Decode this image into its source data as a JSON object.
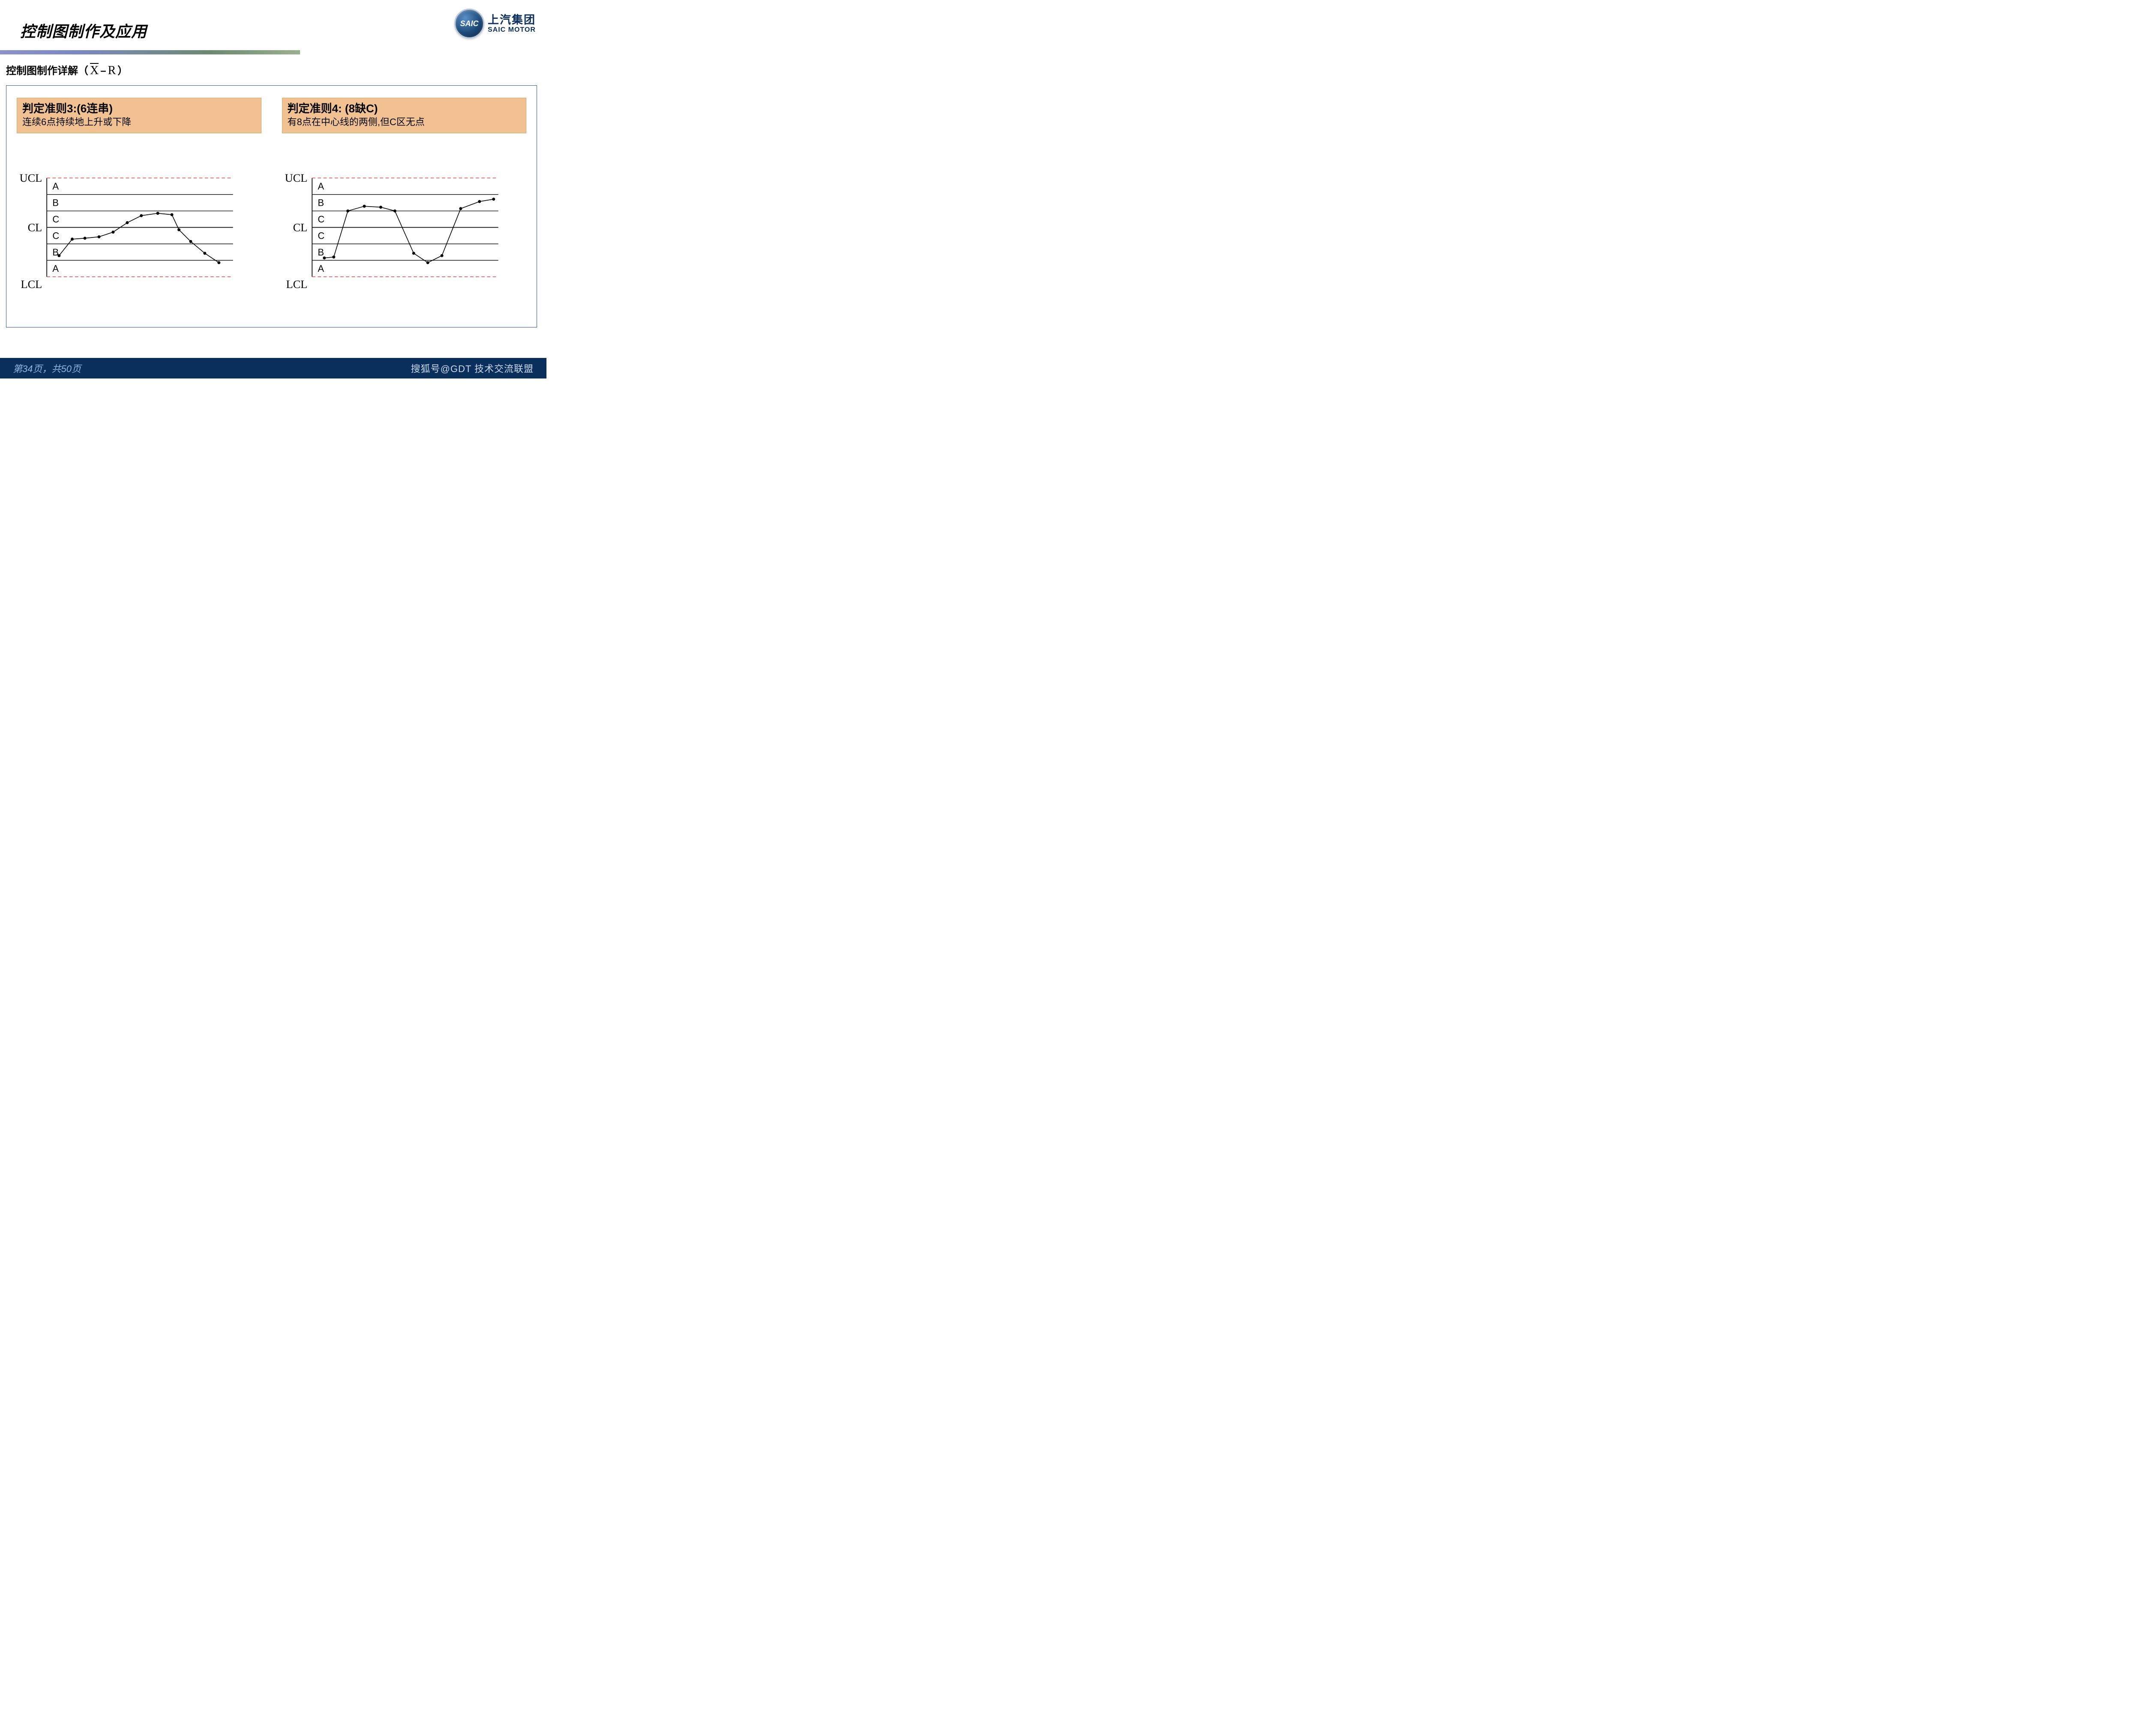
{
  "header": {
    "title": "控制图制作及应用"
  },
  "logo": {
    "badge": "SAIC",
    "cn": "上汽集团",
    "en": "SAIC MOTOR"
  },
  "subtitle": {
    "prefix": "控制图制作详解（",
    "x": "X",
    "dash": "–",
    "r": "R",
    "suffix": "）"
  },
  "rules": [
    {
      "title": "判定准则3:(6连串)",
      "desc": "连续6点持续地上升或下降"
    },
    {
      "title": "判定准则4: (8缺C)",
      "desc": "有8点在中心线的两侧,但C区无点"
    }
  ],
  "chart": {
    "axis_labels": {
      "ucl": "UCL",
      "cl": "CL",
      "lcl": "LCL"
    },
    "zones": [
      "A",
      "B",
      "C",
      "C",
      "B",
      "A"
    ],
    "colors": {
      "solid_line": "#000000",
      "dashed_line": "#e23b3b",
      "point_fill": "#000000",
      "series_line": "#000000"
    },
    "line_width_axis": 1.2,
    "line_width_thick": 1.6,
    "line_width_series": 1.5,
    "dash_pattern": "7 5",
    "point_radius": 3.2,
    "xlim": [
      64,
      460
    ],
    "y_levels": {
      "ucl": 20,
      "z1": 55,
      "z2": 90,
      "cl": 125,
      "z4": 160,
      "z5": 195,
      "lcl": 230
    },
    "left_series": [
      [
        90,
        185
      ],
      [
        118,
        150
      ],
      [
        145,
        148
      ],
      [
        175,
        145
      ],
      [
        205,
        135
      ],
      [
        235,
        115
      ],
      [
        265,
        100
      ],
      [
        300,
        95
      ],
      [
        330,
        98
      ],
      [
        345,
        130
      ],
      [
        370,
        155
      ],
      [
        400,
        180
      ],
      [
        430,
        200
      ]
    ],
    "right_series": [
      [
        90,
        190
      ],
      [
        110,
        188
      ],
      [
        140,
        90
      ],
      [
        175,
        80
      ],
      [
        210,
        82
      ],
      [
        240,
        90
      ],
      [
        280,
        180
      ],
      [
        310,
        200
      ],
      [
        340,
        185
      ],
      [
        380,
        85
      ],
      [
        420,
        70
      ],
      [
        450,
        65
      ]
    ]
  },
  "footer": {
    "page": "第34页，共50页",
    "watermark": "搜狐号@GDT 技术交流联盟"
  }
}
